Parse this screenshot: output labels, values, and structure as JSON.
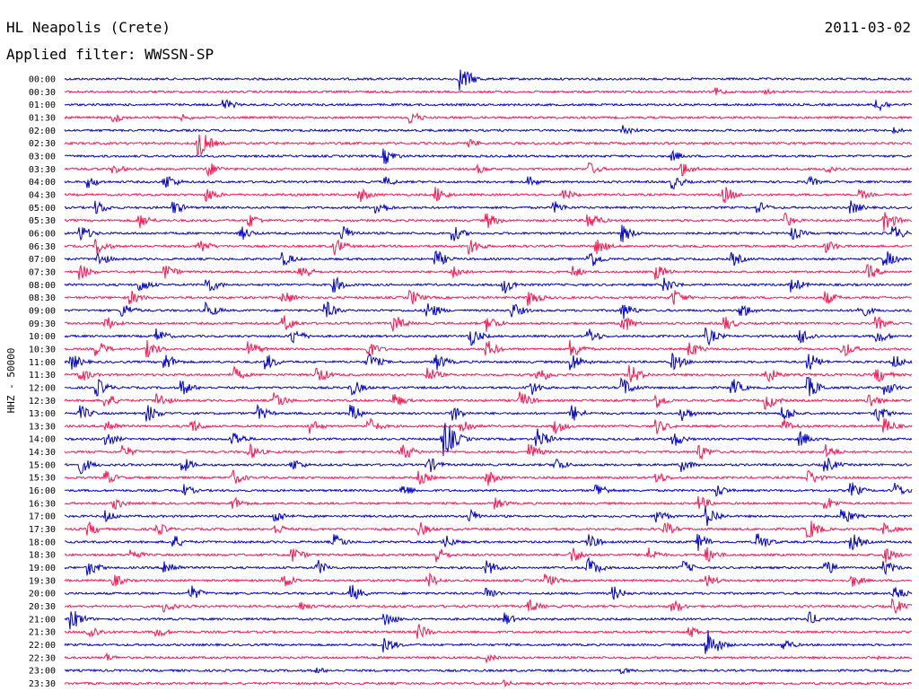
{
  "header": {
    "station": "HL Neapolis (Crete)",
    "date": "2011-03-02",
    "filter": "Applied filter: WWSSN-SP"
  },
  "axis_label": "HHZ - 50000",
  "colors": {
    "trace_a": "#0000cc",
    "trace_b": "#ff1450",
    "text": "#000000"
  },
  "chart_data": {
    "type": "helicorder",
    "ylabel": "HHZ - 50000",
    "row_interval_minutes": 30,
    "series": [
      {
        "color": "#0000cc",
        "rows": "on the hour"
      },
      {
        "color": "#ff1450",
        "rows": "on the half hour"
      }
    ],
    "rows": [
      {
        "time": "00:00",
        "events": [
          [
            0.47,
            14
          ]
        ]
      },
      {
        "time": "00:30",
        "events": [
          [
            0.77,
            5
          ],
          [
            0.83,
            3
          ]
        ]
      },
      {
        "time": "01:00",
        "events": [
          [
            0.19,
            7
          ],
          [
            0.96,
            9
          ]
        ]
      },
      {
        "time": "01:30",
        "events": [
          [
            0.06,
            6
          ],
          [
            0.14,
            4
          ],
          [
            0.41,
            8
          ]
        ]
      },
      {
        "time": "02:00",
        "events": [
          [
            0.66,
            7
          ],
          [
            0.98,
            4
          ]
        ]
      },
      {
        "time": "02:30",
        "events": [
          [
            0.16,
            16
          ],
          [
            0.48,
            5
          ]
        ]
      },
      {
        "time": "03:00",
        "events": [
          [
            0.38,
            9
          ],
          [
            0.72,
            6
          ]
        ]
      },
      {
        "time": "03:30",
        "events": [
          [
            0.06,
            6
          ],
          [
            0.17,
            9
          ],
          [
            0.49,
            5
          ],
          [
            0.62,
            8
          ],
          [
            0.73,
            9
          ],
          [
            0.9,
            5
          ]
        ]
      },
      {
        "time": "04:00",
        "events": [
          [
            0.03,
            7
          ],
          [
            0.12,
            10
          ],
          [
            0.38,
            6
          ],
          [
            0.55,
            6
          ],
          [
            0.72,
            8
          ],
          [
            0.88,
            6
          ]
        ]
      },
      {
        "time": "04:30",
        "events": [
          [
            0.17,
            8
          ],
          [
            0.35,
            8
          ],
          [
            0.44,
            9
          ],
          [
            0.59,
            7
          ],
          [
            0.78,
            10
          ],
          [
            0.94,
            6
          ]
        ]
      },
      {
        "time": "05:00",
        "events": [
          [
            0.04,
            8
          ],
          [
            0.13,
            8
          ],
          [
            0.37,
            9
          ],
          [
            0.58,
            7
          ],
          [
            0.82,
            7
          ],
          [
            0.93,
            8
          ]
        ]
      },
      {
        "time": "05:30",
        "events": [
          [
            0.09,
            9
          ],
          [
            0.22,
            8
          ],
          [
            0.5,
            9
          ],
          [
            0.62,
            11
          ],
          [
            0.85,
            9
          ],
          [
            0.97,
            12
          ]
        ]
      },
      {
        "time": "06:00",
        "events": [
          [
            0.02,
            10
          ],
          [
            0.21,
            8
          ],
          [
            0.33,
            9
          ],
          [
            0.46,
            9
          ],
          [
            0.66,
            10
          ],
          [
            0.86,
            8
          ],
          [
            0.98,
            9
          ]
        ]
      },
      {
        "time": "06:30",
        "events": [
          [
            0.04,
            9
          ],
          [
            0.16,
            9
          ],
          [
            0.32,
            10
          ],
          [
            0.48,
            10
          ],
          [
            0.63,
            9
          ],
          [
            0.9,
            8
          ]
        ]
      },
      {
        "time": "07:00",
        "events": [
          [
            0.04,
            9
          ],
          [
            0.26,
            8
          ],
          [
            0.44,
            10
          ],
          [
            0.62,
            12
          ],
          [
            0.79,
            8
          ],
          [
            0.97,
            10
          ]
        ]
      },
      {
        "time": "07:30",
        "events": [
          [
            0.02,
            9
          ],
          [
            0.12,
            9
          ],
          [
            0.28,
            10
          ],
          [
            0.46,
            8
          ],
          [
            0.6,
            8
          ],
          [
            0.7,
            9
          ],
          [
            0.95,
            9
          ]
        ]
      },
      {
        "time": "08:00",
        "events": [
          [
            0.09,
            9
          ],
          [
            0.17,
            10
          ],
          [
            0.32,
            9
          ],
          [
            0.52,
            10
          ],
          [
            0.71,
            9
          ],
          [
            0.86,
            9
          ]
        ]
      },
      {
        "time": "08:30",
        "events": [
          [
            0.08,
            8
          ],
          [
            0.26,
            9
          ],
          [
            0.41,
            9
          ],
          [
            0.55,
            10
          ],
          [
            0.72,
            10
          ],
          [
            0.9,
            8
          ]
        ]
      },
      {
        "time": "09:00",
        "events": [
          [
            0.07,
            9
          ],
          [
            0.17,
            9
          ],
          [
            0.31,
            10
          ],
          [
            0.43,
            11
          ],
          [
            0.53,
            9
          ],
          [
            0.66,
            10
          ],
          [
            0.8,
            9
          ],
          [
            0.94,
            9
          ]
        ]
      },
      {
        "time": "09:30",
        "events": [
          [
            0.05,
            8
          ],
          [
            0.26,
            10
          ],
          [
            0.39,
            10
          ],
          [
            0.5,
            10
          ],
          [
            0.66,
            11
          ],
          [
            0.78,
            9
          ],
          [
            0.96,
            8
          ]
        ]
      },
      {
        "time": "10:00",
        "events": [
          [
            0.11,
            9
          ],
          [
            0.27,
            10
          ],
          [
            0.48,
            11
          ],
          [
            0.62,
            9
          ],
          [
            0.76,
            10
          ],
          [
            0.87,
            10
          ],
          [
            0.96,
            9
          ]
        ]
      },
      {
        "time": "10:30",
        "events": [
          [
            0.04,
            9
          ],
          [
            0.1,
            10
          ],
          [
            0.22,
            9
          ],
          [
            0.36,
            9
          ],
          [
            0.5,
            10
          ],
          [
            0.6,
            11
          ],
          [
            0.74,
            9
          ],
          [
            0.92,
            10
          ]
        ]
      },
      {
        "time": "11:00",
        "events": [
          [
            0.01,
            9
          ],
          [
            0.12,
            10
          ],
          [
            0.24,
            9
          ],
          [
            0.36,
            11
          ],
          [
            0.44,
            10
          ],
          [
            0.6,
            11
          ],
          [
            0.72,
            10
          ],
          [
            0.88,
            10
          ],
          [
            0.98,
            9
          ]
        ]
      },
      {
        "time": "11:30",
        "events": [
          [
            0.02,
            9
          ],
          [
            0.2,
            9
          ],
          [
            0.3,
            10
          ],
          [
            0.43,
            9
          ],
          [
            0.56,
            10
          ],
          [
            0.67,
            11
          ],
          [
            0.83,
            10
          ],
          [
            0.96,
            10
          ]
        ]
      },
      {
        "time": "12:00",
        "events": [
          [
            0.04,
            10
          ],
          [
            0.14,
            9
          ],
          [
            0.34,
            10
          ],
          [
            0.55,
            10
          ],
          [
            0.66,
            11
          ],
          [
            0.79,
            10
          ],
          [
            0.88,
            12
          ],
          [
            0.97,
            9
          ]
        ]
      },
      {
        "time": "12:30",
        "events": [
          [
            0.05,
            9
          ],
          [
            0.11,
            10
          ],
          [
            0.25,
            10
          ],
          [
            0.39,
            9
          ],
          [
            0.54,
            10
          ],
          [
            0.7,
            9
          ],
          [
            0.83,
            10
          ],
          [
            0.95,
            10
          ]
        ]
      },
      {
        "time": "13:00",
        "events": [
          [
            0.02,
            9
          ],
          [
            0.1,
            10
          ],
          [
            0.23,
            9
          ],
          [
            0.34,
            10
          ],
          [
            0.46,
            9
          ],
          [
            0.6,
            10
          ],
          [
            0.73,
            9
          ],
          [
            0.85,
            10
          ],
          [
            0.96,
            10
          ]
        ]
      },
      {
        "time": "13:30",
        "events": [
          [
            0.05,
            9
          ],
          [
            0.15,
            9
          ],
          [
            0.29,
            9
          ],
          [
            0.36,
            10
          ],
          [
            0.47,
            10
          ],
          [
            0.58,
            9
          ],
          [
            0.7,
            9
          ],
          [
            0.85,
            8
          ],
          [
            0.97,
            9
          ]
        ]
      },
      {
        "time": "14:00",
        "events": [
          [
            0.05,
            9
          ],
          [
            0.2,
            10
          ],
          [
            0.45,
            22
          ],
          [
            0.56,
            12
          ],
          [
            0.72,
            9
          ],
          [
            0.87,
            9
          ]
        ]
      },
      {
        "time": "14:30",
        "events": [
          [
            0.07,
            8
          ],
          [
            0.22,
            9
          ],
          [
            0.4,
            11
          ],
          [
            0.55,
            10
          ],
          [
            0.75,
            10
          ],
          [
            0.9,
            9
          ]
        ]
      },
      {
        "time": "15:00",
        "events": [
          [
            0.02,
            10
          ],
          [
            0.14,
            9
          ],
          [
            0.27,
            8
          ],
          [
            0.43,
            10
          ],
          [
            0.58,
            9
          ],
          [
            0.73,
            8
          ],
          [
            0.9,
            9
          ]
        ]
      },
      {
        "time": "15:30",
        "events": [
          [
            0.05,
            8
          ],
          [
            0.2,
            9
          ],
          [
            0.42,
            8
          ],
          [
            0.5,
            9
          ],
          [
            0.7,
            8
          ],
          [
            0.88,
            9
          ]
        ]
      },
      {
        "time": "16:00",
        "events": [
          [
            0.14,
            8
          ],
          [
            0.4,
            8
          ],
          [
            0.63,
            9
          ],
          [
            0.77,
            8
          ],
          [
            0.93,
            9
          ],
          [
            0.98,
            10
          ]
        ]
      },
      {
        "time": "16:30",
        "events": [
          [
            0.06,
            7
          ],
          [
            0.2,
            8
          ],
          [
            0.51,
            7
          ],
          [
            0.75,
            9
          ],
          [
            0.9,
            8
          ]
        ]
      },
      {
        "time": "17:00",
        "events": [
          [
            0.05,
            7
          ],
          [
            0.25,
            8
          ],
          [
            0.48,
            8
          ],
          [
            0.7,
            9
          ],
          [
            0.76,
            12
          ],
          [
            0.92,
            10
          ]
        ]
      },
      {
        "time": "17:30",
        "events": [
          [
            0.03,
            8
          ],
          [
            0.11,
            8
          ],
          [
            0.25,
            7
          ],
          [
            0.42,
            8
          ],
          [
            0.71,
            8
          ],
          [
            0.88,
            12
          ],
          [
            0.97,
            8
          ]
        ]
      },
      {
        "time": "18:00",
        "events": [
          [
            0.13,
            8
          ],
          [
            0.32,
            9
          ],
          [
            0.45,
            8
          ],
          [
            0.62,
            9
          ],
          [
            0.75,
            10
          ],
          [
            0.82,
            11
          ],
          [
            0.93,
            10
          ]
        ]
      },
      {
        "time": "18:30",
        "events": [
          [
            0.08,
            7
          ],
          [
            0.27,
            9
          ],
          [
            0.44,
            10
          ],
          [
            0.6,
            10
          ],
          [
            0.69,
            9
          ],
          [
            0.76,
            9
          ],
          [
            0.97,
            9
          ]
        ]
      },
      {
        "time": "19:00",
        "events": [
          [
            0.03,
            9
          ],
          [
            0.12,
            10
          ],
          [
            0.3,
            9
          ],
          [
            0.5,
            9
          ],
          [
            0.62,
            12
          ],
          [
            0.73,
            9
          ],
          [
            0.9,
            9
          ],
          [
            0.97,
            8
          ]
        ]
      },
      {
        "time": "19:30",
        "events": [
          [
            0.06,
            7
          ],
          [
            0.26,
            9
          ],
          [
            0.43,
            9
          ],
          [
            0.57,
            8
          ],
          [
            0.76,
            7
          ],
          [
            0.93,
            8
          ]
        ]
      },
      {
        "time": "20:00",
        "events": [
          [
            0.15,
            9
          ],
          [
            0.34,
            10
          ],
          [
            0.5,
            8
          ],
          [
            0.65,
            8
          ],
          [
            0.98,
            10
          ]
        ]
      },
      {
        "time": "20:30",
        "events": [
          [
            0.12,
            7
          ],
          [
            0.28,
            6
          ],
          [
            0.55,
            8
          ],
          [
            0.72,
            8
          ],
          [
            0.98,
            9
          ]
        ]
      },
      {
        "time": "21:00",
        "events": [
          [
            0.01,
            12
          ],
          [
            0.38,
            9
          ],
          [
            0.52,
            8
          ],
          [
            0.88,
            8
          ]
        ]
      },
      {
        "time": "21:30",
        "events": [
          [
            0.03,
            9
          ],
          [
            0.11,
            7
          ],
          [
            0.42,
            9
          ],
          [
            0.74,
            7
          ]
        ]
      },
      {
        "time": "22:00",
        "events": [
          [
            0.38,
            9
          ],
          [
            0.76,
            18
          ],
          [
            0.85,
            7
          ]
        ]
      },
      {
        "time": "22:30",
        "events": [
          [
            0.05,
            5
          ],
          [
            0.5,
            5
          ],
          [
            0.95,
            5
          ]
        ]
      },
      {
        "time": "23:00",
        "events": [
          [
            0.3,
            4
          ],
          [
            0.66,
            4
          ]
        ]
      },
      {
        "time": "23:30",
        "events": [
          [
            0.52,
            4
          ]
        ]
      }
    ]
  }
}
